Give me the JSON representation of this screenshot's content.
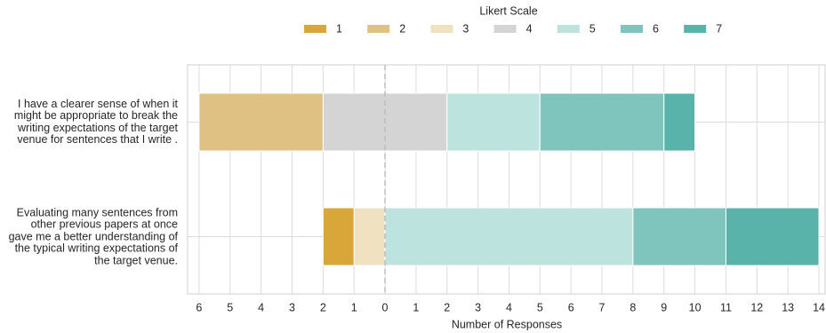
{
  "chart_data": {
    "type": "diverging_bar",
    "categories": [
      "I have a clearer sense of when it might be appropriate to break the writing expectations of the target venue for sentences that I write .",
      "Evaluating many sentences from other previous papers at once gave me a better understanding of the typical writing expectations of the target venue."
    ],
    "series": [
      {
        "name": "1",
        "color": "#d9a63a",
        "values": [
          0,
          1
        ]
      },
      {
        "name": "2",
        "color": "#dfc283",
        "values": [
          4,
          0
        ]
      },
      {
        "name": "3",
        "color": "#f0e2c0",
        "values": [
          0,
          1
        ]
      },
      {
        "name": "4",
        "color": "#d4d4d4",
        "values": [
          4,
          0
        ]
      },
      {
        "name": "5",
        "color": "#bde3df",
        "values": [
          3,
          8
        ]
      },
      {
        "name": "6",
        "color": "#7fc4bd",
        "values": [
          4,
          3
        ]
      },
      {
        "name": "7",
        "color": "#5ab3aa",
        "values": [
          1,
          3
        ]
      }
    ],
    "legend_title": "Likert Scale",
    "x_label": "Number of Responses",
    "xlim": [
      -6.37,
      14.2
    ],
    "xticks": [
      {
        "value": -6,
        "label": "6"
      },
      {
        "value": -5,
        "label": "5"
      },
      {
        "value": -4,
        "label": "4"
      },
      {
        "value": -3,
        "label": "3"
      },
      {
        "value": -2,
        "label": "2"
      },
      {
        "value": -1,
        "label": "1"
      },
      0,
      1,
      2,
      3,
      4,
      5,
      6,
      7,
      8,
      9,
      10,
      11,
      12,
      13,
      14
    ],
    "grid": true
  }
}
